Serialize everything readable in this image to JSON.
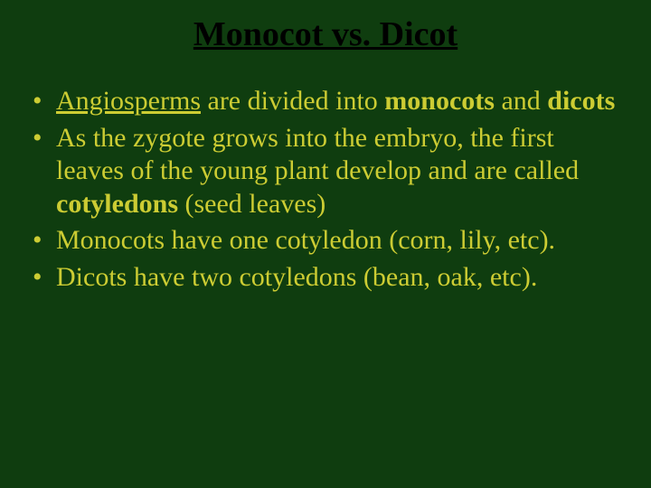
{
  "background_color": "#0f3d0f",
  "title": {
    "text": "Monocot vs. Dicot",
    "color": "#000000",
    "fontsize": 38,
    "underline": true,
    "bold": true
  },
  "body_text_color": "#cccc33",
  "body_fontsize": 30,
  "bullets": [
    {
      "segments": [
        {
          "t": "Angiosperms",
          "u": true
        },
        {
          "t": " are divided into "
        },
        {
          "t": "monocots",
          "b": true
        },
        {
          "t": " and "
        },
        {
          "t": "dicots",
          "b": true
        }
      ]
    },
    {
      "segments": [
        {
          "t": "As the zygote grows into the embryo, the first leaves of the young plant develop and are called "
        },
        {
          "t": "cotyledons",
          "b": true
        },
        {
          "t": " (seed leaves)"
        }
      ]
    },
    {
      "segments": [
        {
          "t": "Monocots have one cotyledon (corn, lily, etc)."
        }
      ]
    },
    {
      "segments": [
        {
          "t": "Dicots have two cotyledons (bean, oak, etc)."
        }
      ]
    }
  ]
}
